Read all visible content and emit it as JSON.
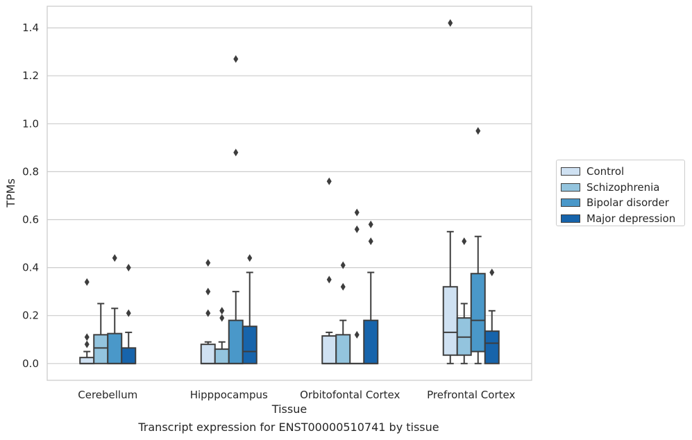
{
  "caption": "Transcript expression for ENST00000510741 by tissue",
  "colors": {
    "Control": "#cfe1f2",
    "Schizophrenia": "#93c4de",
    "Bipolar disorder": "#4a98c9",
    "Major depression": "#1764ab",
    "grid": "#cccccc",
    "line": "#3d3d3d"
  },
  "chart_data": {
    "type": "box",
    "title": "",
    "xlabel": "Tissue",
    "ylabel": "TPMs",
    "ylim": [
      -0.07,
      1.49
    ],
    "yticks": [
      0.0,
      0.2,
      0.4,
      0.6,
      0.8,
      1.0,
      1.2,
      1.4
    ],
    "ytick_labels": [
      "0.0",
      "0.2",
      "0.4",
      "0.6",
      "0.8",
      "1.0",
      "1.2",
      "1.4"
    ],
    "grid": "horizontal",
    "legend_position": "right",
    "categories": [
      "Cerebellum",
      "Hipppocampus",
      "Orbitofontal Cortex",
      "Prefrontal Cortex"
    ],
    "series": [
      {
        "name": "Control",
        "boxes": [
          {
            "q1": 0.0,
            "median": 0.0,
            "q3": 0.025,
            "wlow": 0.0,
            "whigh": 0.05,
            "outliers": [
              0.08,
              0.11,
              0.34
            ]
          },
          {
            "q1": 0.0,
            "median": 0.0,
            "q3": 0.08,
            "wlow": 0.0,
            "whigh": 0.09,
            "outliers": [
              0.21,
              0.3,
              0.42
            ]
          },
          {
            "q1": 0.0,
            "median": 0.0,
            "q3": 0.115,
            "wlow": 0.0,
            "whigh": 0.13,
            "outliers": [
              0.35,
              0.76
            ]
          },
          {
            "q1": 0.035,
            "median": 0.13,
            "q3": 0.32,
            "wlow": 0.0,
            "whigh": 0.55,
            "outliers": [
              1.42
            ]
          }
        ]
      },
      {
        "name": "Schizophrenia",
        "boxes": [
          {
            "q1": 0.0,
            "median": 0.065,
            "q3": 0.12,
            "wlow": 0.0,
            "whigh": 0.25,
            "outliers": []
          },
          {
            "q1": 0.0,
            "median": 0.0,
            "q3": 0.06,
            "wlow": 0.0,
            "whigh": 0.09,
            "outliers": [
              0.19,
              0.22
            ]
          },
          {
            "q1": 0.0,
            "median": 0.0,
            "q3": 0.12,
            "wlow": 0.0,
            "whigh": 0.18,
            "outliers": [
              0.32,
              0.41
            ]
          },
          {
            "q1": 0.035,
            "median": 0.11,
            "q3": 0.19,
            "wlow": 0.0,
            "whigh": 0.25,
            "outliers": [
              0.51
            ]
          }
        ]
      },
      {
        "name": "Bipolar disorder",
        "boxes": [
          {
            "q1": 0.0,
            "median": 0.0,
            "q3": 0.125,
            "wlow": 0.0,
            "whigh": 0.23,
            "outliers": [
              0.44
            ]
          },
          {
            "q1": 0.0,
            "median": 0.0,
            "q3": 0.18,
            "wlow": 0.0,
            "whigh": 0.3,
            "outliers": [
              0.88,
              1.27
            ]
          },
          {
            "q1": 0.0,
            "median": 0.0,
            "q3": 0.0,
            "wlow": 0.0,
            "whigh": 0.0,
            "outliers": [
              0.12,
              0.56,
              0.63
            ]
          },
          {
            "q1": 0.05,
            "median": 0.18,
            "q3": 0.375,
            "wlow": 0.0,
            "whigh": 0.53,
            "outliers": [
              0.97
            ]
          }
        ]
      },
      {
        "name": "Major depression",
        "boxes": [
          {
            "q1": 0.0,
            "median": 0.0,
            "q3": 0.065,
            "wlow": 0.0,
            "whigh": 0.13,
            "outliers": [
              0.21,
              0.4
            ]
          },
          {
            "q1": 0.0,
            "median": 0.05,
            "q3": 0.155,
            "wlow": 0.0,
            "whigh": 0.38,
            "outliers": [
              0.44
            ]
          },
          {
            "q1": 0.0,
            "median": 0.0,
            "q3": 0.18,
            "wlow": 0.0,
            "whigh": 0.38,
            "outliers": [
              0.51,
              0.58
            ]
          },
          {
            "q1": 0.0,
            "median": 0.085,
            "q3": 0.135,
            "wlow": 0.0,
            "whigh": 0.22,
            "outliers": [
              0.38
            ]
          }
        ]
      }
    ]
  }
}
